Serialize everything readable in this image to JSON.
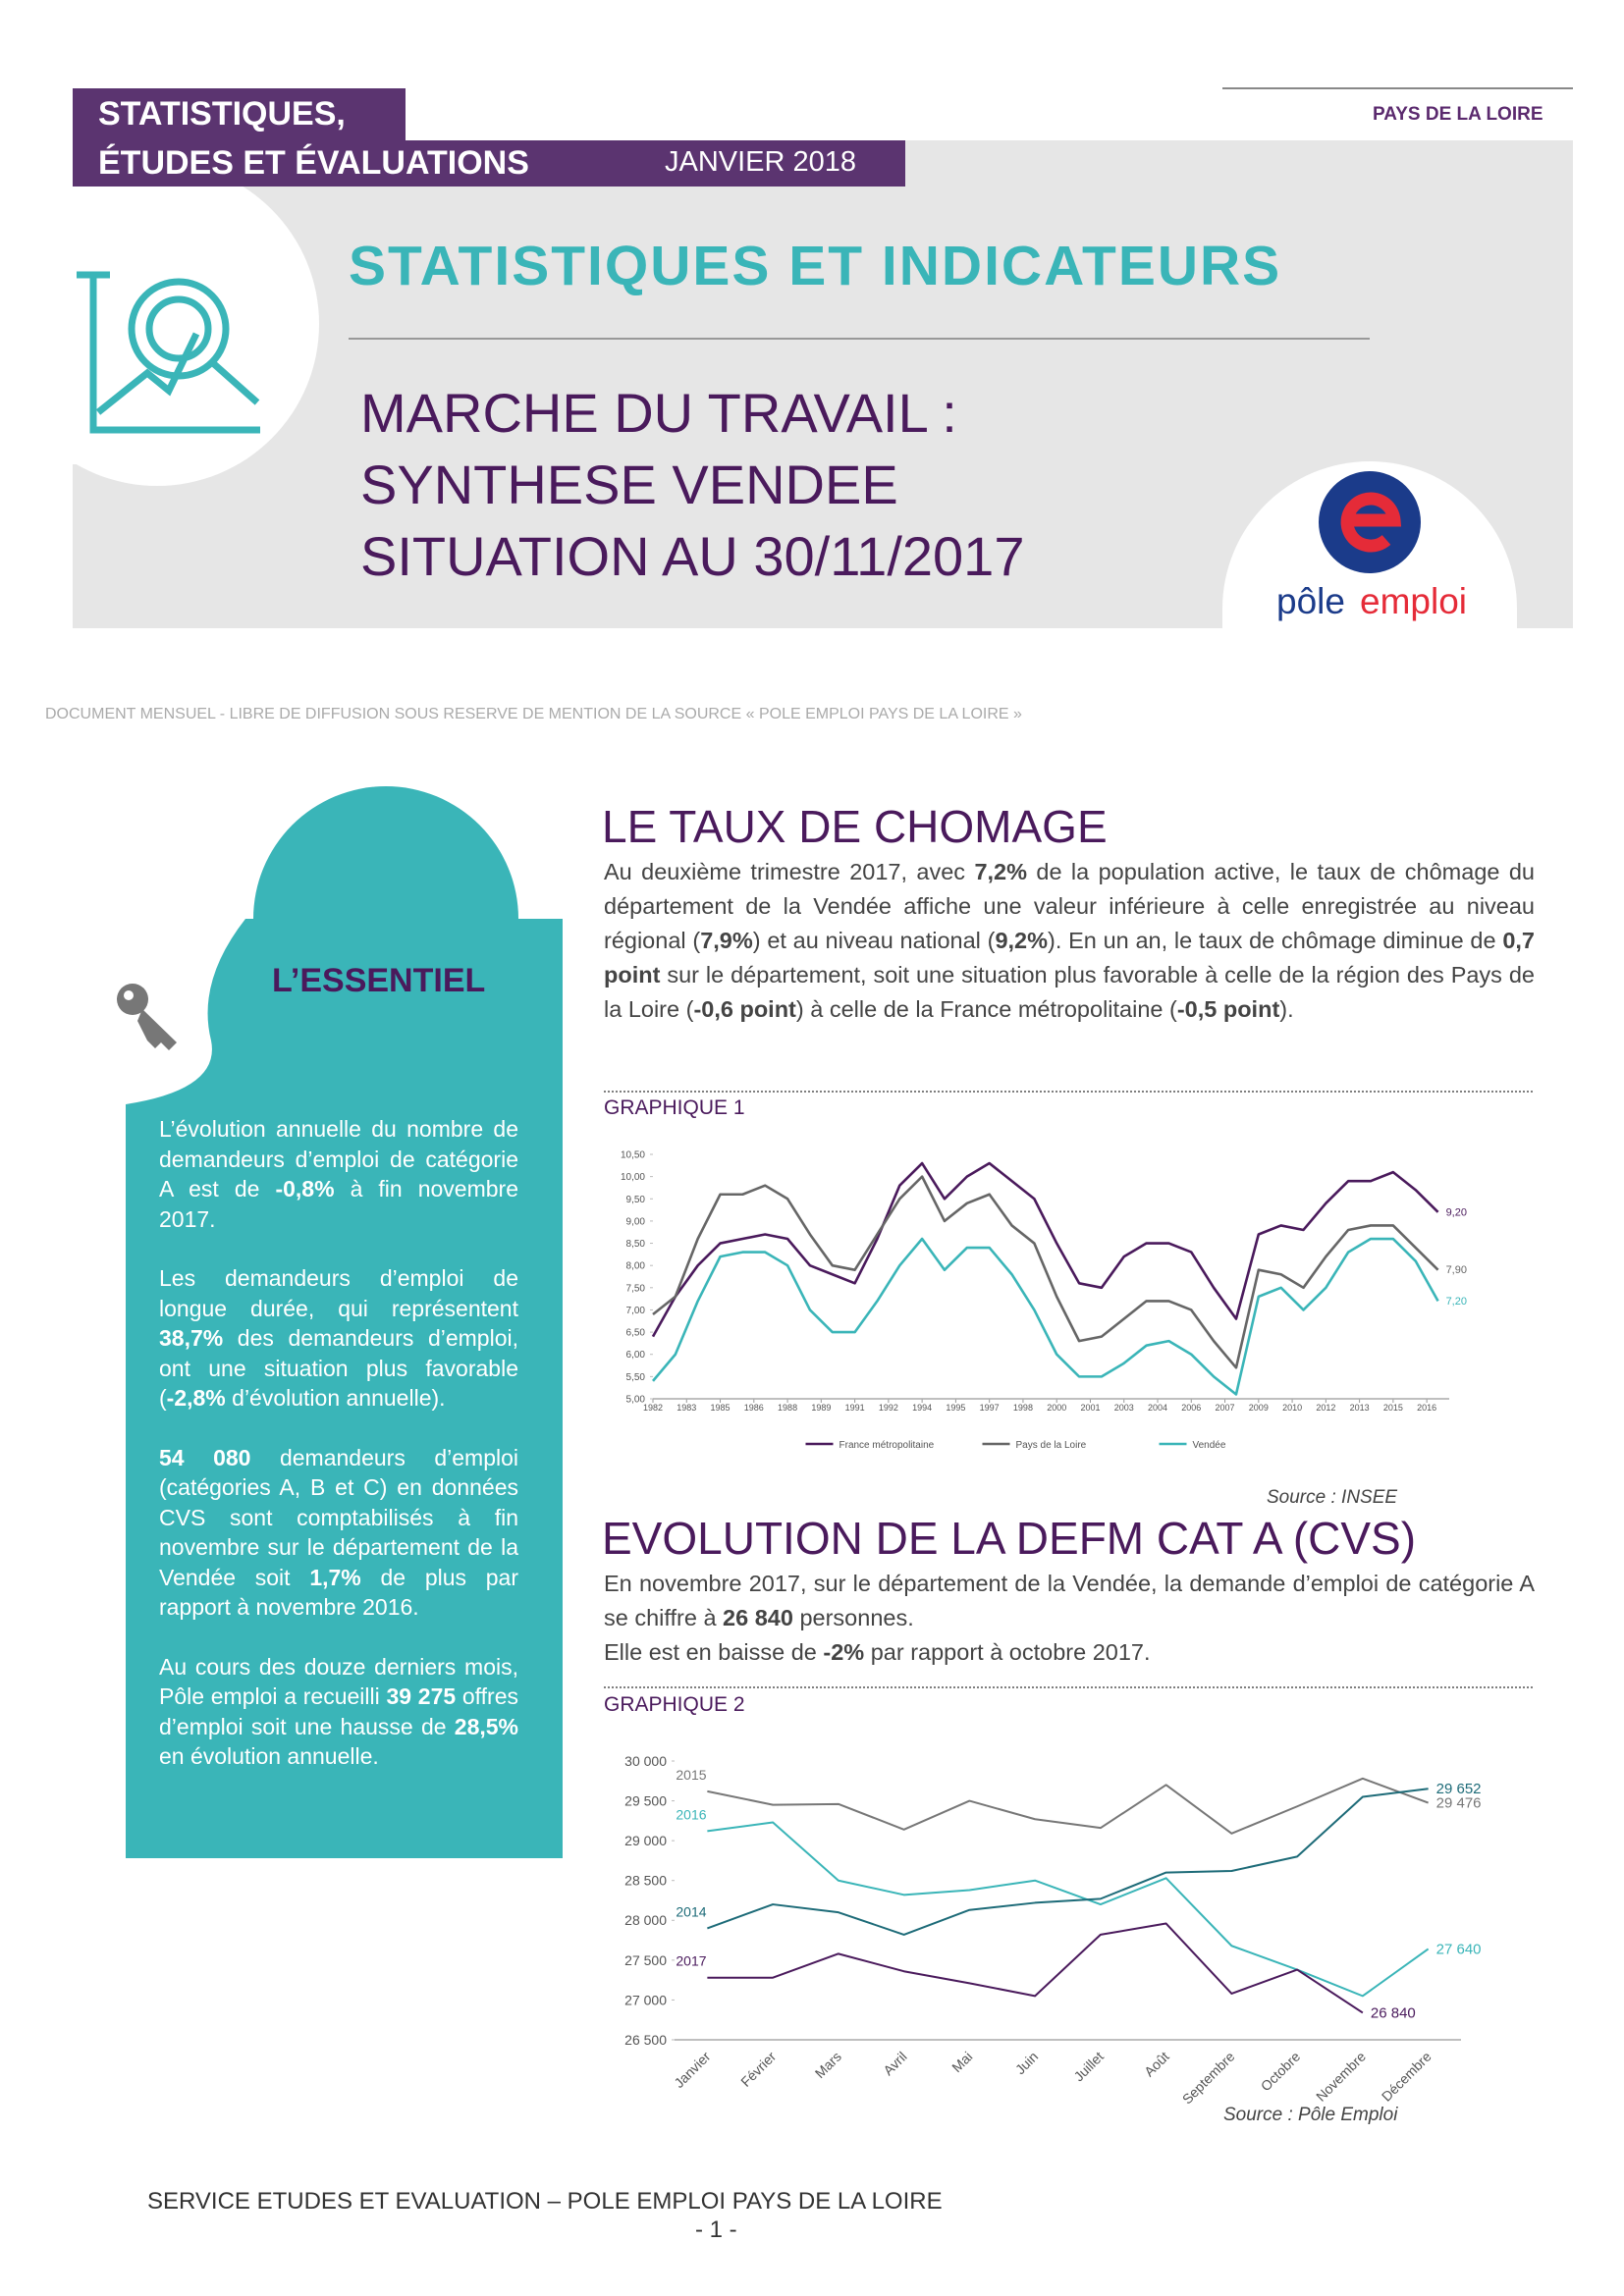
{
  "header": {
    "band_line1": "STATISTIQUES,",
    "band_line2": "ÉTUDES ET ÉVALUATIONS",
    "date": "JANVIER 2018",
    "region": "PAYS DE LA LOIRE",
    "title": "STATISTIQUES ET INDICATEURS",
    "subtitle": [
      "MARCHE DU TRAVAIL :",
      "SYNTHESE VENDEE",
      "SITUATION AU 30/11/2017"
    ],
    "logo": {
      "left": "pôle",
      "right": "emploi"
    }
  },
  "disclaimer": "DOCUMENT MENSUEL - LIBRE DE DIFFUSION SOUS RESERVE DE MENTION DE LA SOURCE « POLE EMPLOI PAYS DE LA LOIRE »",
  "sidebar": {
    "title": "L’ESSENTIEL",
    "paragraphs": [
      [
        {
          "text": "L’évolution annuelle du nombre de demandeurs d’emploi de catégorie A est de ",
          "bold": false
        },
        {
          "text": "-0,8%",
          "bold": true
        },
        {
          "text": " à fin novembre 2017.",
          "bold": false
        }
      ],
      [
        {
          "text": "Les demandeurs d’emploi de longue durée, qui représentent ",
          "bold": false
        },
        {
          "text": "38,7%",
          "bold": true
        },
        {
          "text": " des demandeurs d’emploi, ont une situation plus favorable (",
          "bold": false
        },
        {
          "text": "-2,8%",
          "bold": true
        },
        {
          "text": " d’évolution annuelle).",
          "bold": false
        }
      ],
      [
        {
          "text": "54 080",
          "bold": true
        },
        {
          "text": " demandeurs d’emploi (catégories A, B et C) en données CVS sont comptabilisés à fin novembre sur le département de la Vendée soit ",
          "bold": false
        },
        {
          "text": "1,7%",
          "bold": true
        },
        {
          "text": " de plus par rapport à novembre 2016.",
          "bold": false
        }
      ],
      [
        {
          "text": "Au cours des douze derniers mois, Pôle emploi a recueilli ",
          "bold": false
        },
        {
          "text": "39 275",
          "bold": true
        },
        {
          "text": " offres d’emploi soit une hausse de ",
          "bold": false
        },
        {
          "text": "28,5%",
          "bold": true
        },
        {
          "text": " en évolution annuelle.",
          "bold": false
        }
      ]
    ]
  },
  "sections": [
    {
      "heading": "LE TAUX DE CHOMAGE",
      "paragraphs": [
        [
          {
            "text": "Au deuxième trimestre 2017, avec ",
            "bold": false
          },
          {
            "text": "7,2%",
            "bold": true
          },
          {
            "text": " de la population active, le taux de chômage du département de la Vendée affiche une valeur inférieure à celle enregistrée au niveau régional (",
            "bold": false
          },
          {
            "text": "7,9%",
            "bold": true
          },
          {
            "text": ") et au niveau national (",
            "bold": false
          },
          {
            "text": "9,2%",
            "bold": true
          },
          {
            "text": "). En un an, le taux de chômage diminue de ",
            "bold": false
          },
          {
            "text": "0,7 point",
            "bold": true
          },
          {
            "text": " sur le département, soit une situation plus favorable à celle de la région des Pays de la Loire (",
            "bold": false
          },
          {
            "text": "-0,6 point",
            "bold": true
          },
          {
            "text": ") à celle de la France métropolitaine (",
            "bold": false
          },
          {
            "text": "-0,5 point",
            "bold": true
          },
          {
            "text": ").",
            "bold": false
          }
        ]
      ]
    },
    {
      "heading": "EVOLUTION DE LA DEFM CAT A (CVS)",
      "paragraphs": [
        [
          {
            "text": "En novembre 2017, sur le département de la Vendée, la demande d’emploi de catégorie A se chiffre à ",
            "bold": false
          },
          {
            "text": "26 840",
            "bold": true
          },
          {
            "text": " personnes.",
            "bold": false
          }
        ],
        [
          {
            "text": "Elle est en baisse de ",
            "bold": false
          },
          {
            "text": "-2%",
            "bold": true
          },
          {
            "text": " par rapport à octobre 2017.",
            "bold": false
          }
        ]
      ]
    }
  ],
  "chart_data": [
    {
      "type": "line",
      "label": "GRAPHIQUE 1",
      "source": "Source : INSEE",
      "legend": "bottom",
      "grid": false,
      "x": [
        1982,
        1983,
        1984,
        1985,
        1986,
        1987,
        1988,
        1989,
        1990,
        1991,
        1992,
        1993,
        1994,
        1995,
        1996,
        1997,
        1998,
        1999,
        2000,
        2001,
        2002,
        2003,
        2004,
        2005,
        2006,
        2007,
        2008,
        2009,
        2010,
        2011,
        2012,
        2013,
        2014,
        2015,
        2016,
        2017
      ],
      "xlim": [
        1982,
        2017.5
      ],
      "xticks": [
        1982,
        {
          "value": 1983.5,
          "label": "1983"
        },
        1985,
        {
          "value": 1986.5,
          "label": "1986"
        },
        1988,
        {
          "value": 1989.5,
          "label": "1989"
        },
        1991,
        {
          "value": 1992.5,
          "label": "1992"
        },
        1994,
        {
          "value": 1995.5,
          "label": "1995"
        },
        1997,
        {
          "value": 1998.5,
          "label": "1998"
        },
        2000,
        {
          "value": 2001.5,
          "label": "2001"
        },
        2003,
        {
          "value": 2004.5,
          "label": "2004"
        },
        2006,
        {
          "value": 2007.5,
          "label": "2007"
        },
        2009,
        {
          "value": 2010.5,
          "label": "2010"
        },
        2012,
        {
          "value": 2013.5,
          "label": "2013"
        },
        2015,
        {
          "value": 2016.5,
          "label": "2016"
        }
      ],
      "ylim": [
        5,
        10.5
      ],
      "yticks": [
        {
          "value": 5,
          "label": "5,00"
        },
        {
          "value": 5.5,
          "label": "5,50"
        },
        {
          "value": 6,
          "label": "6,00"
        },
        {
          "value": 6.5,
          "label": "6,50"
        },
        {
          "value": 7,
          "label": "7,00"
        },
        {
          "value": 7.5,
          "label": "7,50"
        },
        {
          "value": 8,
          "label": "8,00"
        },
        {
          "value": 8.5,
          "label": "8,50"
        },
        {
          "value": 9,
          "label": "9,00"
        },
        {
          "value": 9.5,
          "label": "9,50"
        },
        {
          "value": 10,
          "label": "10,00"
        },
        {
          "value": 10.5,
          "label": "10,50"
        }
      ],
      "series": [
        {
          "name": "France métropolitaine",
          "color": "#4a1a5c",
          "values": [
            6.4,
            7.3,
            8.0,
            8.5,
            8.6,
            8.7,
            8.6,
            8.0,
            7.8,
            7.6,
            8.6,
            9.8,
            10.3,
            9.5,
            10.0,
            10.3,
            9.9,
            9.5,
            8.5,
            7.6,
            7.5,
            8.2,
            8.5,
            8.5,
            8.3,
            7.5,
            6.8,
            8.7,
            8.9,
            8.8,
            9.4,
            9.9,
            9.9,
            10.1,
            9.7,
            9.2
          ],
          "value_labels": [
            null,
            null,
            null,
            null,
            null,
            null,
            null,
            null,
            null,
            null,
            null,
            null,
            null,
            null,
            null,
            null,
            null,
            null,
            null,
            null,
            null,
            null,
            null,
            null,
            null,
            null,
            null,
            null,
            null,
            null,
            null,
            null,
            null,
            null,
            null,
            "9,20"
          ]
        },
        {
          "name": "Pays de la Loire",
          "color": "#666666",
          "values": [
            6.9,
            7.3,
            8.6,
            9.6,
            9.6,
            9.8,
            9.5,
            8.7,
            8.0,
            7.9,
            8.7,
            9.5,
            10.0,
            9.0,
            9.4,
            9.6,
            8.9,
            8.5,
            7.3,
            6.3,
            6.4,
            6.8,
            7.2,
            7.2,
            7.0,
            6.3,
            5.7,
            7.9,
            7.8,
            7.5,
            8.2,
            8.8,
            8.9,
            8.9,
            8.4,
            7.9
          ],
          "value_labels": [
            null,
            null,
            null,
            null,
            null,
            null,
            null,
            null,
            null,
            null,
            null,
            null,
            null,
            null,
            null,
            null,
            null,
            null,
            null,
            null,
            null,
            null,
            null,
            null,
            null,
            null,
            null,
            null,
            null,
            null,
            null,
            null,
            null,
            null,
            null,
            "7,90"
          ]
        },
        {
          "name": "Vendée",
          "color": "#3ab5b8",
          "values": [
            5.4,
            6.0,
            7.2,
            8.2,
            8.3,
            8.3,
            8.0,
            7.0,
            6.5,
            6.5,
            7.2,
            8.0,
            8.6,
            7.9,
            8.4,
            8.4,
            7.8,
            7.0,
            6.0,
            5.5,
            5.5,
            5.8,
            6.2,
            6.3,
            6.0,
            5.5,
            5.1,
            7.3,
            7.5,
            7.0,
            7.5,
            8.3,
            8.6,
            8.6,
            8.1,
            7.2
          ],
          "value_labels": [
            null,
            null,
            null,
            null,
            null,
            null,
            null,
            null,
            null,
            null,
            null,
            null,
            null,
            null,
            null,
            null,
            null,
            null,
            null,
            null,
            null,
            null,
            null,
            null,
            null,
            null,
            null,
            null,
            null,
            null,
            null,
            null,
            null,
            null,
            null,
            "7,20"
          ]
        }
      ]
    },
    {
      "type": "line",
      "label": "GRAPHIQUE 2",
      "source": "Source : Pôle Emploi",
      "legend": "inline",
      "grid": false,
      "categories": [
        "Janvier",
        "Février",
        "Mars",
        "Avril",
        "Mai",
        "Juin",
        "Juillet",
        "Août",
        "Septembre",
        "Octobre",
        "Novembre",
        "Décembre"
      ],
      "ylim": [
        26500,
        30000
      ],
      "yticks": [
        {
          "value": 26500,
          "label": "26 500"
        },
        {
          "value": 27000,
          "label": "27 000"
        },
        {
          "value": 27500,
          "label": "27 500"
        },
        {
          "value": 28000,
          "label": "28 000"
        },
        {
          "value": 28500,
          "label": "28 500"
        },
        {
          "value": 29000,
          "label": "29 000"
        },
        {
          "value": 29500,
          "label": "29 500"
        },
        {
          "value": 30000,
          "label": "30 000"
        }
      ],
      "series": [
        {
          "name": "2015",
          "color": "#777777",
          "values": [
            29620,
            29450,
            29460,
            29140,
            29500,
            29270,
            29160,
            29700,
            29090,
            29430,
            29780,
            29476
          ],
          "value_labels": [
            null,
            null,
            null,
            null,
            null,
            null,
            null,
            null,
            null,
            null,
            null,
            "29 476"
          ]
        },
        {
          "name": "2016",
          "color": "#3ab5b8",
          "values": [
            29120,
            29230,
            28500,
            28320,
            28380,
            28500,
            28200,
            28530,
            27680,
            27380,
            27050,
            27640
          ],
          "value_labels": [
            null,
            null,
            null,
            null,
            null,
            null,
            null,
            null,
            null,
            null,
            null,
            "27 640"
          ]
        },
        {
          "name": "2014",
          "color": "#1d6b78",
          "values": [
            27900,
            28200,
            28100,
            27820,
            28130,
            28220,
            28270,
            28600,
            28620,
            28800,
            29550,
            29652
          ],
          "value_labels": [
            null,
            null,
            null,
            null,
            null,
            null,
            null,
            null,
            null,
            null,
            null,
            "29 652"
          ]
        },
        {
          "name": "2017",
          "color": "#4a1a5c",
          "values": [
            27280,
            27280,
            27580,
            27360,
            27210,
            27050,
            27820,
            27960,
            27080,
            27380,
            26840,
            null
          ],
          "value_labels": [
            null,
            null,
            null,
            null,
            null,
            null,
            null,
            null,
            null,
            null,
            "26 840",
            null
          ]
        }
      ]
    }
  ],
  "footer": {
    "service": "SERVICE ETUDES ET EVALUATION – POLE EMPLOI PAYS DE LA LOIRE",
    "page": "- 1 -"
  }
}
